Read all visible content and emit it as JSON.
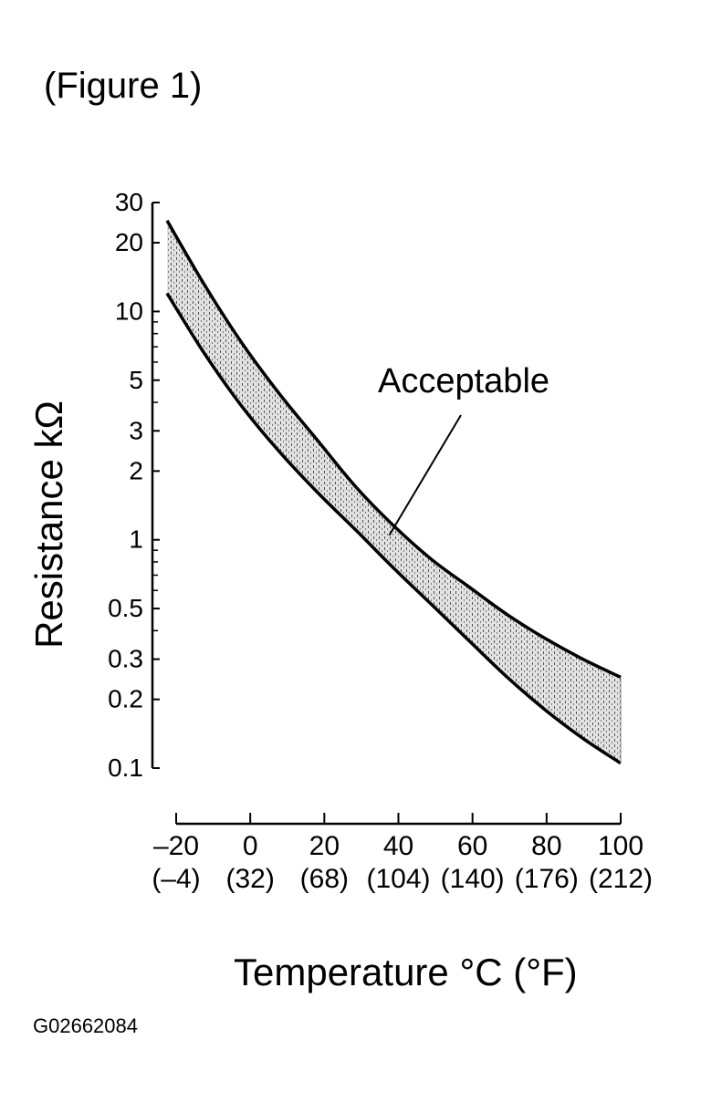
{
  "figure_label": "(Figure 1)",
  "figure_code": "G02662084",
  "colors": {
    "ink": "#000000",
    "band_fill": "#b5b5b5",
    "background": "#ffffff"
  },
  "chart_data": {
    "type": "area",
    "title": "",
    "xlabel": "Temperature °C (°F)",
    "ylabel": "Resistance kΩ",
    "xlim": [
      -20,
      100
    ],
    "ylim": [
      0.1,
      30
    ],
    "yscale": "log",
    "grid": false,
    "x_ticks": [
      {
        "c": "–20",
        "f": "(–4)",
        "value": -20
      },
      {
        "c": "0",
        "f": "(32)",
        "value": 0
      },
      {
        "c": "20",
        "f": "(68)",
        "value": 20
      },
      {
        "c": "40",
        "f": "(104)",
        "value": 40
      },
      {
        "c": "60",
        "f": "(140)",
        "value": 60
      },
      {
        "c": "80",
        "f": "(176)",
        "value": 80
      },
      {
        "c": "100",
        "f": "(212)",
        "value": 100
      }
    ],
    "y_ticks": [
      {
        "label": "30",
        "value": 30
      },
      {
        "label": "20",
        "value": 20
      },
      {
        "label": "10",
        "value": 10
      },
      {
        "label": "5",
        "value": 5
      },
      {
        "label": "3",
        "value": 3
      },
      {
        "label": "2",
        "value": 2
      },
      {
        "label": "1",
        "value": 1
      },
      {
        "label": "0.5",
        "value": 0.5
      },
      {
        "label": "0.3",
        "value": 0.3
      },
      {
        "label": "0.2",
        "value": 0.2
      },
      {
        "label": "0.1",
        "value": 0.1
      }
    ],
    "y_minor_ticks": [
      9,
      8,
      7,
      6,
      4,
      0.9,
      0.8,
      0.7,
      0.6,
      0.4
    ],
    "series": [
      {
        "role": "upper",
        "x": [
          -20,
          -10,
          0,
          10,
          20,
          30,
          40,
          50,
          60,
          70,
          80,
          90,
          100
        ],
        "values": [
          25,
          13,
          7.2,
          4.3,
          2.7,
          1.7,
          1.15,
          0.82,
          0.62,
          0.47,
          0.37,
          0.3,
          0.25
        ]
      },
      {
        "role": "lower",
        "x": [
          -20,
          -10,
          0,
          10,
          20,
          30,
          40,
          50,
          60,
          70,
          80,
          90,
          100
        ],
        "values": [
          12,
          6.5,
          3.8,
          2.4,
          1.6,
          1.1,
          0.75,
          0.52,
          0.36,
          0.25,
          0.18,
          0.135,
          0.105
        ]
      }
    ],
    "annotations": [
      {
        "text": "Acceptable",
        "points_to_x": 40,
        "points_to_y": 1.0
      }
    ]
  }
}
